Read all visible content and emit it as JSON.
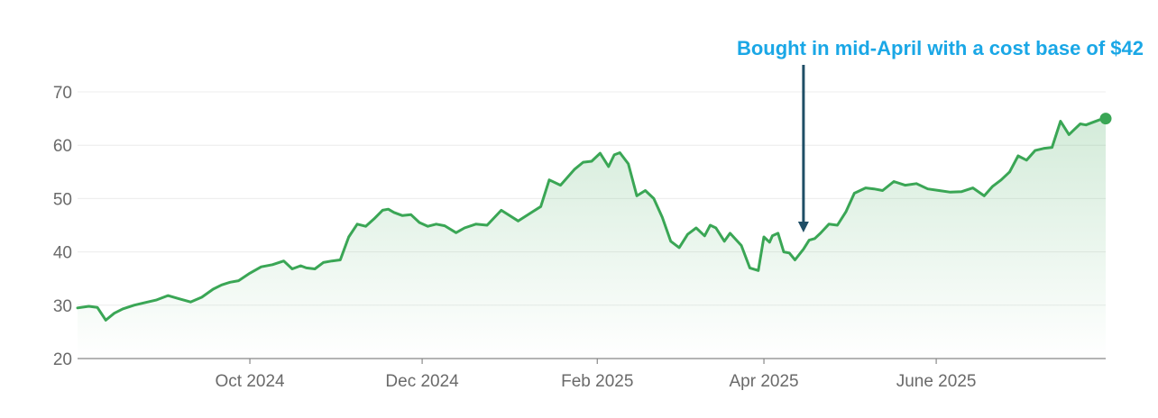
{
  "chart_data": {
    "type": "area",
    "title": "",
    "xlabel": "",
    "ylabel": "",
    "ylim": [
      20,
      70
    ],
    "yticks": [
      20,
      30,
      40,
      50,
      60,
      70
    ],
    "xlim": [
      "2024-08-01",
      "2025-07-31"
    ],
    "xticks": [
      {
        "date": "2024-10-01",
        "label": "Oct 2024"
      },
      {
        "date": "2024-12-01",
        "label": "Dec 2024"
      },
      {
        "date": "2025-02-01",
        "label": "Feb 2025"
      },
      {
        "date": "2025-04-01",
        "label": "Apr 2025"
      },
      {
        "date": "2025-06-01",
        "label": "June 2025"
      }
    ],
    "grid": "horizontal",
    "line_color": "#3aa655",
    "fill_color": "#3aa655",
    "series": [
      {
        "x": [
          "2024-08-01",
          "2024-08-05",
          "2024-08-08",
          "2024-08-11",
          "2024-08-14",
          "2024-08-17",
          "2024-08-21",
          "2024-08-25",
          "2024-08-29",
          "2024-09-02",
          "2024-09-06",
          "2024-09-10",
          "2024-09-14",
          "2024-09-18",
          "2024-09-21",
          "2024-09-24",
          "2024-09-27",
          "2024-10-01",
          "2024-10-05",
          "2024-10-09",
          "2024-10-13",
          "2024-10-16",
          "2024-10-19",
          "2024-10-21",
          "2024-10-24",
          "2024-10-27",
          "2024-10-30",
          "2024-11-02",
          "2024-11-05",
          "2024-11-08",
          "2024-11-11",
          "2024-11-14",
          "2024-11-17",
          "2024-11-19",
          "2024-11-21",
          "2024-11-24",
          "2024-11-27",
          "2024-11-30",
          "2024-12-03",
          "2024-12-06",
          "2024-12-09",
          "2024-12-13",
          "2024-12-16",
          "2024-12-20",
          "2024-12-24",
          "2024-12-29",
          "2025-01-04",
          "2025-01-09",
          "2025-01-12",
          "2025-01-15",
          "2025-01-19",
          "2025-01-24",
          "2025-01-27",
          "2025-01-30",
          "2025-02-02",
          "2025-02-05",
          "2025-02-07",
          "2025-02-09",
          "2025-02-12",
          "2025-02-15",
          "2025-02-18",
          "2025-02-21",
          "2025-02-24",
          "2025-02-27",
          "2025-03-02",
          "2025-03-05",
          "2025-03-08",
          "2025-03-11",
          "2025-03-13",
          "2025-03-15",
          "2025-03-18",
          "2025-03-20",
          "2025-03-24",
          "2025-03-27",
          "2025-03-30",
          "2025-04-01",
          "2025-04-03",
          "2025-04-04",
          "2025-04-06",
          "2025-04-08",
          "2025-04-10",
          "2025-04-12",
          "2025-04-15",
          "2025-04-17",
          "2025-04-19",
          "2025-04-21",
          "2025-04-24",
          "2025-04-27",
          "2025-04-30",
          "2025-05-03",
          "2025-05-07",
          "2025-05-10",
          "2025-05-13",
          "2025-05-17",
          "2025-05-21",
          "2025-05-25",
          "2025-05-29",
          "2025-06-02",
          "2025-06-06",
          "2025-06-10",
          "2025-06-14",
          "2025-06-18",
          "2025-06-21",
          "2025-06-24",
          "2025-06-27",
          "2025-06-30",
          "2025-07-03",
          "2025-07-06",
          "2025-07-09",
          "2025-07-12",
          "2025-07-15",
          "2025-07-18",
          "2025-07-20",
          "2025-07-22",
          "2025-07-24",
          "2025-07-26",
          "2025-07-29",
          "2025-07-31"
        ],
        "values": [
          29.5,
          29.8,
          29.6,
          27.2,
          28.5,
          29.3,
          30.0,
          30.5,
          31.0,
          31.8,
          31.2,
          30.6,
          31.5,
          33.0,
          33.8,
          34.3,
          34.6,
          36.0,
          37.2,
          37.6,
          38.3,
          36.8,
          37.4,
          37.0,
          36.8,
          38.0,
          38.3,
          38.5,
          42.8,
          45.2,
          44.8,
          46.2,
          47.8,
          48.0,
          47.4,
          46.8,
          47.0,
          45.5,
          44.8,
          45.2,
          44.9,
          43.6,
          44.5,
          45.2,
          45.0,
          47.8,
          45.8,
          47.5,
          48.5,
          53.5,
          52.5,
          55.5,
          56.8,
          57.0,
          58.5,
          56.0,
          58.2,
          58.6,
          56.5,
          50.5,
          51.5,
          50.0,
          46.5,
          42.0,
          40.8,
          43.3,
          44.5,
          43.0,
          45.0,
          44.5,
          42.0,
          43.5,
          41.2,
          37.0,
          36.5,
          42.8,
          41.8,
          43.0,
          43.5,
          40.0,
          39.8,
          38.5,
          40.5,
          42.2,
          42.5,
          43.5,
          45.2,
          45.0,
          47.5,
          51.0,
          52.0,
          51.8,
          51.5,
          53.2,
          52.5,
          52.8,
          51.8,
          51.5,
          51.2,
          51.3,
          52.0,
          50.5,
          52.3,
          53.5,
          55.0,
          58.0,
          57.2,
          59.0,
          59.4,
          59.6,
          64.5,
          62.0,
          63.0,
          64.0,
          63.8,
          64.2,
          64.8,
          65.0
        ]
      }
    ],
    "annotation": {
      "text": "Bought in mid-April with a cost base of $42",
      "target_date": "2025-04-15",
      "color": "#1aa7e6",
      "arrow_color": "#1f4e66"
    }
  }
}
